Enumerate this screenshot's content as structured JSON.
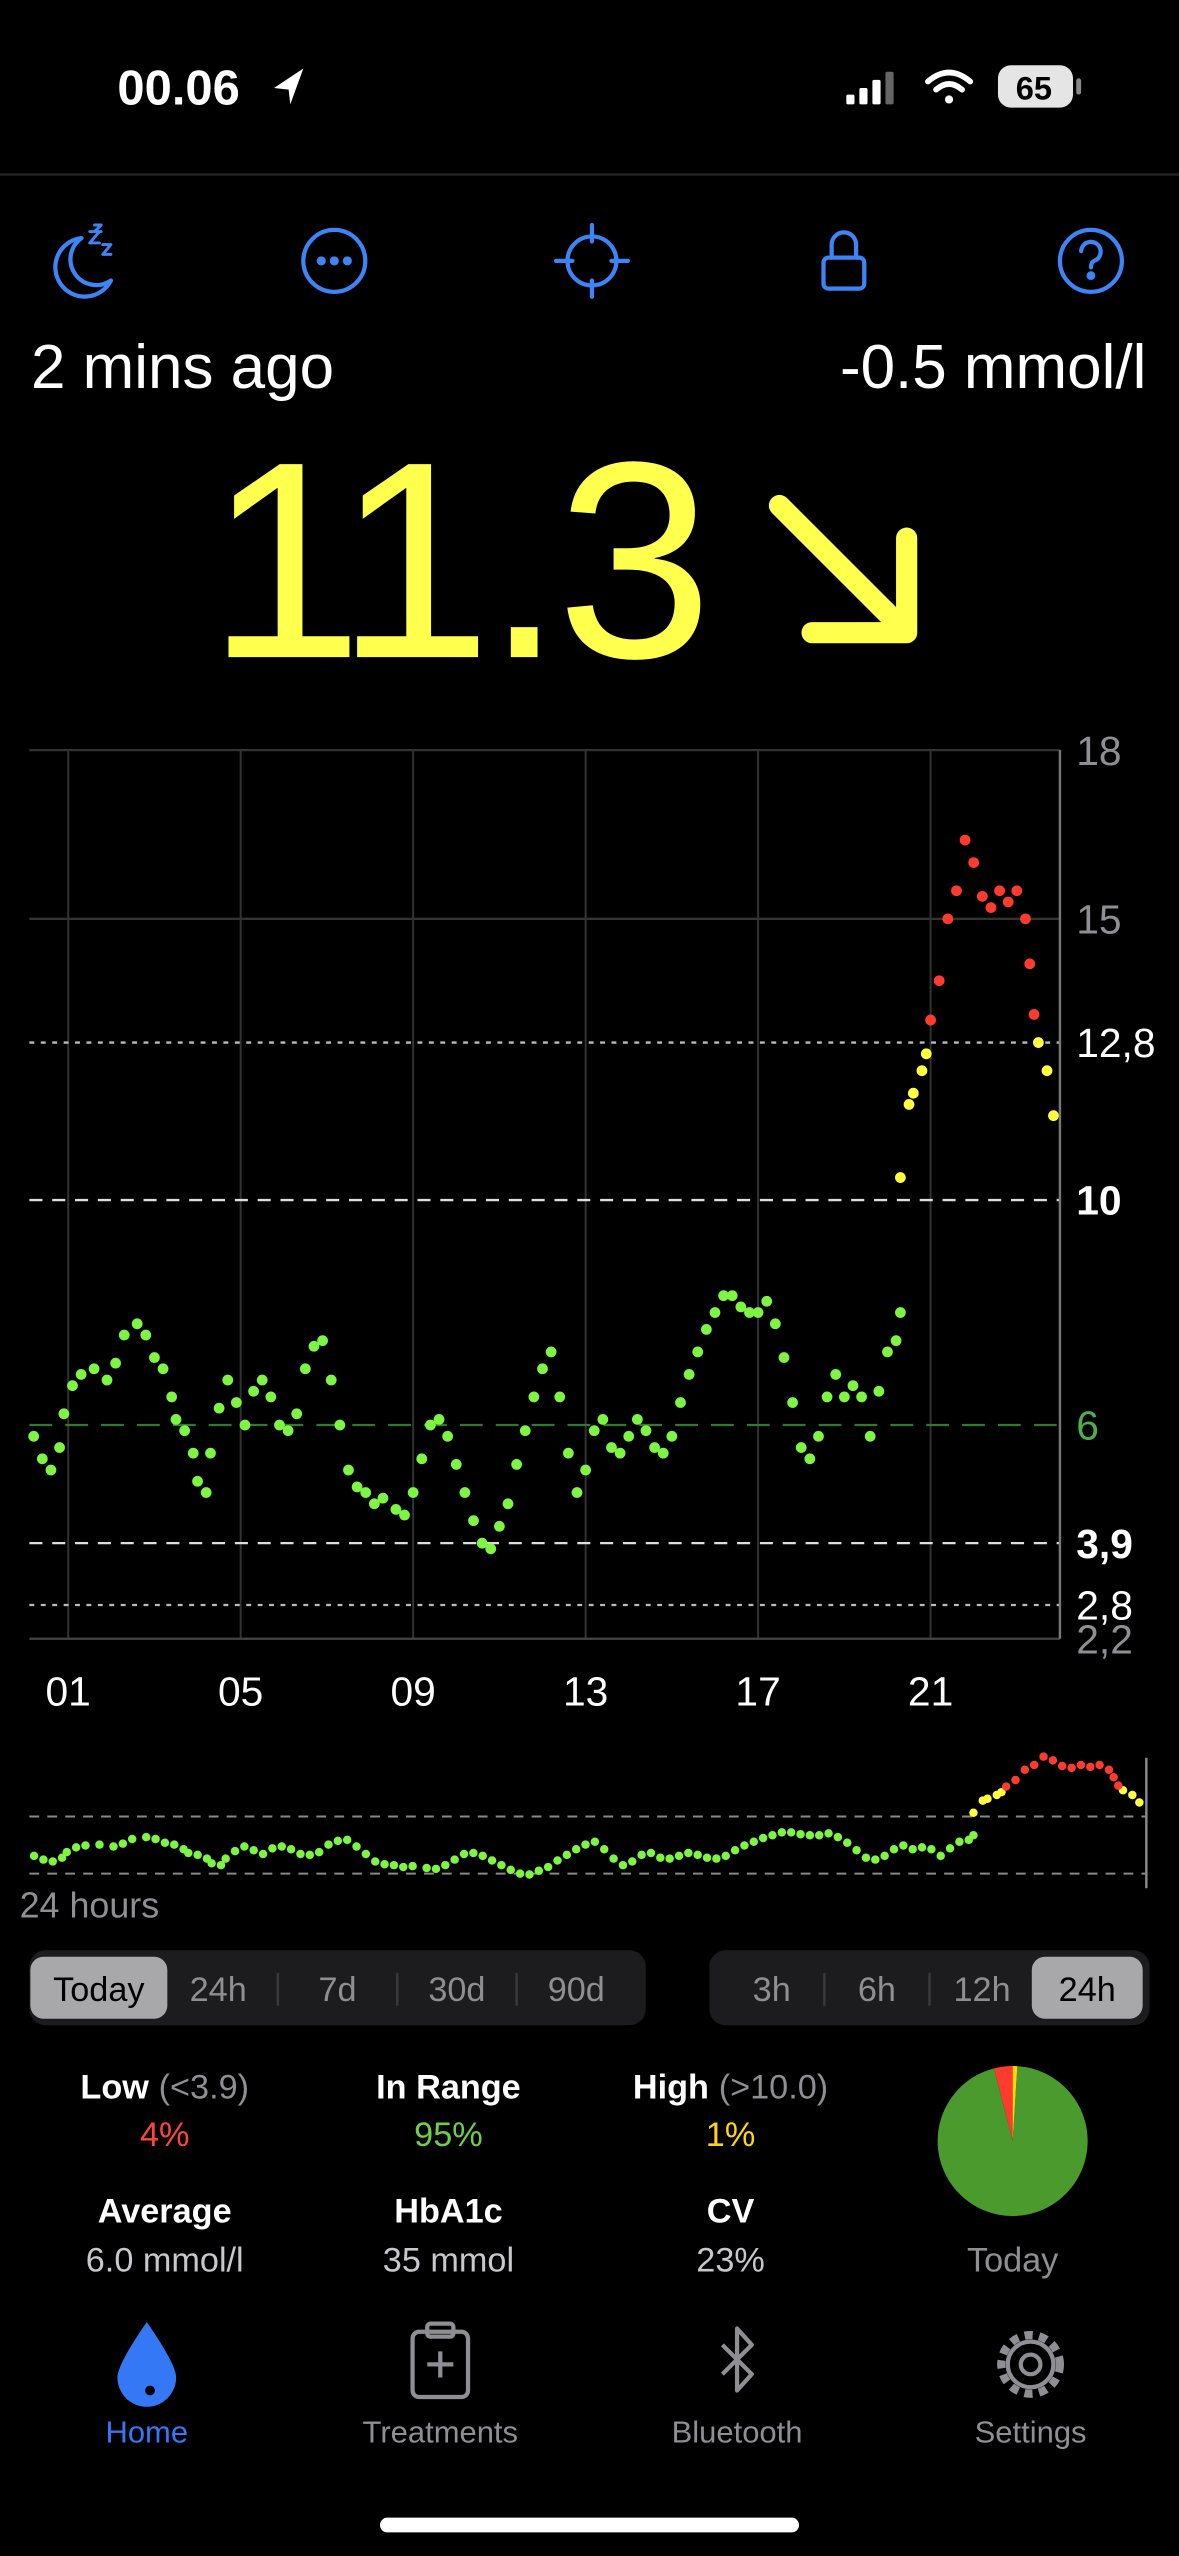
{
  "status_bar": {
    "time": "00.06",
    "battery": "65"
  },
  "header": {
    "age": "2 mins ago",
    "delta": "-0.5 mmol/l",
    "reading": "11.3"
  },
  "chart_data": {
    "type": "scatter",
    "xlim": [
      0.1,
      24
    ],
    "xticks": [
      {
        "value": 1,
        "label": "01"
      },
      {
        "value": 5,
        "label": "05"
      },
      {
        "value": 9,
        "label": "09"
      },
      {
        "value": 13,
        "label": "13"
      },
      {
        "value": 17,
        "label": "17"
      },
      {
        "value": 21,
        "label": "21"
      }
    ],
    "ylim": [
      2.2,
      18
    ],
    "yticks": [
      18,
      15,
      {
        "value": 12.8,
        "label": "12,8"
      },
      10,
      6,
      {
        "value": 3.9,
        "label": "3,9"
      },
      {
        "value": 2.8,
        "label": "2,8"
      },
      {
        "value": 2.2,
        "label": "2,2"
      }
    ],
    "grid": true,
    "series": [
      {
        "color": "#7ef542",
        "x": [
          0.2,
          0.4,
          0.6,
          0.8,
          0.9,
          1.1,
          1.3,
          1.6,
          1.9,
          2.1,
          2.3,
          2.6,
          2.8,
          3.0,
          3.2,
          3.4,
          3.5,
          3.7,
          3.9,
          4.0,
          4.2,
          4.3,
          4.5,
          4.7,
          4.9,
          5.1,
          5.3,
          5.5,
          5.7,
          5.9,
          6.1,
          6.3,
          6.5,
          6.7,
          6.9,
          7.1,
          7.3,
          7.5,
          7.7,
          7.9,
          8.1,
          8.3,
          8.6,
          8.8,
          9.0,
          9.2,
          9.4,
          9.6,
          9.8,
          10.0,
          10.2,
          10.4,
          10.6,
          10.8,
          11.0,
          11.2,
          11.4,
          11.6,
          11.8,
          12.0,
          12.2,
          12.4,
          12.6,
          12.8,
          13.0,
          13.2,
          13.4,
          13.6,
          13.8,
          14.0,
          14.2,
          14.4,
          14.6,
          14.8,
          15.0,
          15.2,
          15.4,
          15.6,
          15.8,
          16.0,
          16.2,
          16.4,
          16.6,
          16.8,
          17.0,
          17.2,
          17.4,
          17.6,
          17.8,
          18.0,
          18.2,
          18.4,
          18.6,
          18.8,
          19.0,
          19.2,
          19.4,
          19.6,
          19.8,
          20.0,
          20.2,
          20.3
        ],
        "values": [
          5.8,
          5.4,
          5.2,
          5.6,
          6.2,
          6.7,
          6.9,
          7.0,
          6.8,
          7.1,
          7.6,
          7.8,
          7.6,
          7.2,
          7.0,
          6.5,
          6.1,
          5.9,
          5.5,
          5.0,
          4.8,
          5.5,
          6.3,
          6.8,
          6.4,
          6.0,
          6.6,
          6.8,
          6.5,
          6.0,
          5.9,
          6.2,
          7.0,
          7.4,
          7.5,
          6.8,
          6.0,
          5.2,
          4.9,
          4.8,
          4.6,
          4.7,
          4.5,
          4.4,
          4.8,
          5.4,
          6.0,
          6.1,
          5.8,
          5.3,
          4.8,
          4.3,
          3.9,
          3.8,
          4.2,
          4.6,
          5.3,
          5.9,
          6.5,
          7.0,
          7.3,
          6.5,
          5.5,
          4.8,
          5.2,
          5.9,
          6.1,
          5.6,
          5.5,
          5.8,
          6.1,
          5.9,
          5.6,
          5.5,
          5.8,
          6.4,
          6.9,
          7.3,
          7.7,
          8.0,
          8.3,
          8.3,
          8.1,
          8.0,
          8.0,
          8.2,
          7.8,
          7.2,
          6.4,
          5.6,
          5.4,
          5.8,
          6.5,
          6.9,
          6.5,
          6.7,
          6.5,
          5.8,
          6.6,
          7.3,
          7.5,
          8.0
        ]
      },
      {
        "color": "#ffff3d",
        "x": [
          20.3,
          20.5,
          20.6,
          20.8,
          20.9,
          23.5,
          23.7,
          23.85
        ],
        "values": [
          10.4,
          11.7,
          11.9,
          12.3,
          12.6,
          12.8,
          12.3,
          11.5
        ]
      },
      {
        "color": "#ff3b2f",
        "x": [
          21.0,
          21.2,
          21.4,
          21.6,
          21.8,
          22.0,
          22.2,
          22.4,
          22.6,
          22.8,
          23.0,
          23.2,
          23.3,
          23.4
        ],
        "values": [
          13.2,
          13.9,
          15.0,
          15.5,
          16.4,
          16.0,
          15.4,
          15.2,
          15.5,
          15.3,
          15.5,
          15.0,
          14.2,
          13.3
        ]
      }
    ]
  },
  "overview_label": "24 hours",
  "range_tabs": {
    "items": [
      "Today",
      "24h",
      "7d",
      "30d",
      "90d"
    ],
    "selected": 0
  },
  "window_tabs": {
    "items": [
      "3h",
      "6h",
      "12h",
      "24h"
    ],
    "selected": 3
  },
  "time_in_range": [
    {
      "label": "Low",
      "range": "(<3.9)",
      "value": 4,
      "value_label": "4%",
      "color": "#ff453a",
      "pie_color": "#ff3b30"
    },
    {
      "label": "In Range",
      "value": 95,
      "value_label": "95%",
      "color": "#6ecf4b",
      "pie_color": "#4a9a2e"
    },
    {
      "label": "High",
      "range": "(>10.0)",
      "value": 1,
      "value_label": "1%",
      "color": "#ffd60a",
      "pie_color": "#ffd60a"
    }
  ],
  "summary": [
    {
      "label": "Average",
      "value": "6.0 mmol/l"
    },
    {
      "label": "HbA1c",
      "value": "35 mmol"
    },
    {
      "label": "CV",
      "value": "23%"
    }
  ],
  "pie_label": "Today",
  "tab_bar": {
    "items": [
      "Home",
      "Treatments",
      "Bluetooth",
      "Settings"
    ],
    "selected": 0
  }
}
